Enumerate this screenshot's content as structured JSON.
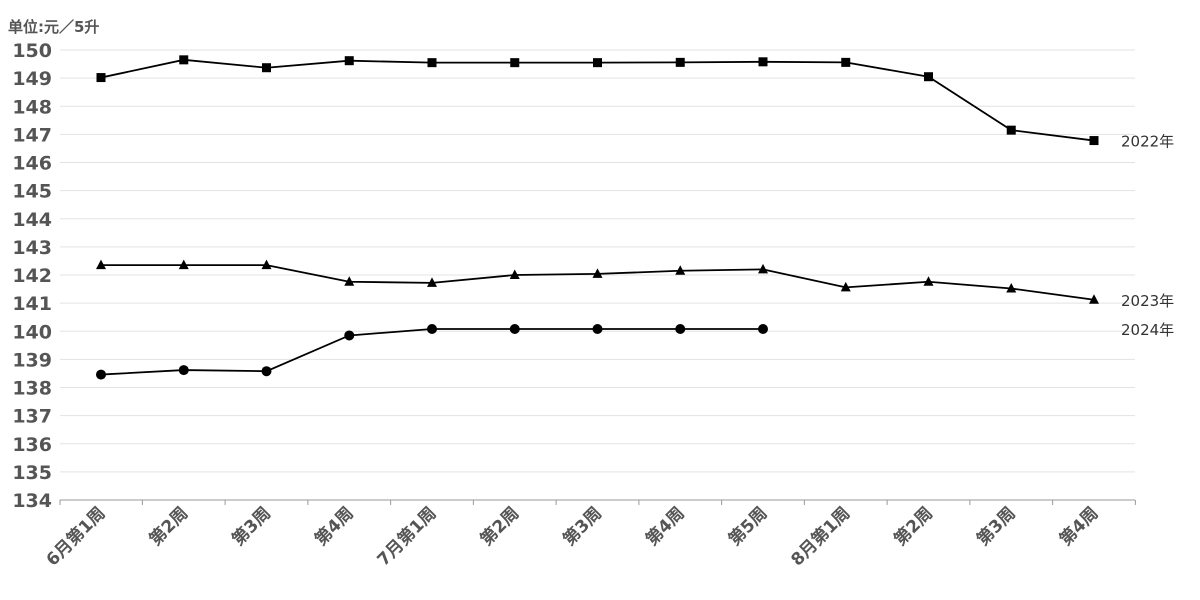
{
  "unit_label": "单位:元／5升",
  "chart_data": {
    "type": "line",
    "ylim": [
      134,
      150
    ],
    "ytick_step": 1,
    "grid": true,
    "categories": [
      "6月第1周",
      "第2周",
      "第3周",
      "第4周",
      "7月第1周",
      "第2周",
      "第3周",
      "第4周",
      "第5周",
      "8月第1周",
      "第2周",
      "第3周",
      "第4周"
    ],
    "series": [
      {
        "name": "2022年",
        "marker": "square",
        "values": [
          149.02,
          149.65,
          149.37,
          149.62,
          149.55,
          149.55,
          149.55,
          149.56,
          149.58,
          149.56,
          149.05,
          147.15,
          146.78
        ]
      },
      {
        "name": "2023年",
        "marker": "triangle",
        "values": [
          142.35,
          142.35,
          142.35,
          141.76,
          141.72,
          142.0,
          142.04,
          142.15,
          142.2,
          141.56,
          141.76,
          141.52,
          141.12
        ]
      },
      {
        "name": "2024年",
        "marker": "circle",
        "values": [
          138.46,
          138.62,
          138.58,
          139.85,
          140.08,
          140.08,
          140.08,
          140.08,
          140.08,
          null,
          null,
          null,
          null
        ]
      }
    ]
  }
}
